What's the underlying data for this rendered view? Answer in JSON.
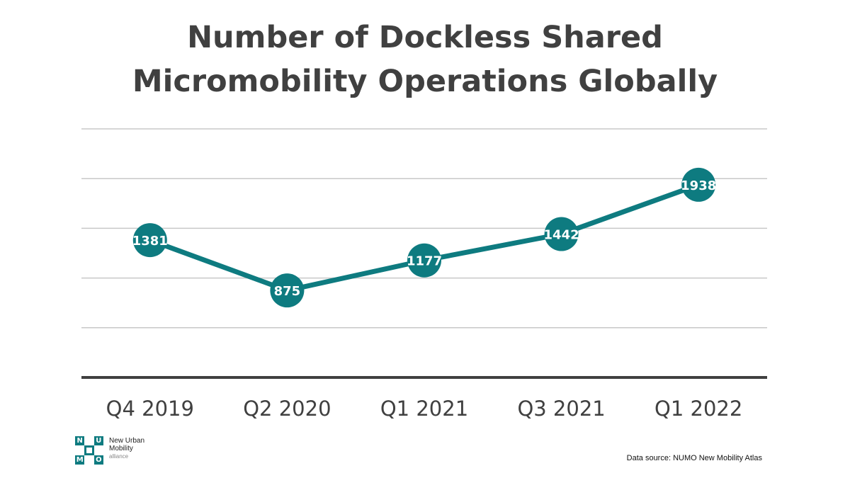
{
  "title": {
    "line1": "Number of Dockless Shared",
    "line2": "Micromobility Operations Globally"
  },
  "chart_data": {
    "type": "line",
    "title": "Number of Dockless Shared Micromobility Operations Globally",
    "categories": [
      "Q4 2019",
      "Q2 2020",
      "Q1 2021",
      "Q3 2021",
      "Q1 2022"
    ],
    "series": [
      {
        "values": [
          1381,
          875,
          1177,
          1442,
          1938
        ]
      }
    ],
    "data_labels": true,
    "ylim": [
      0,
      2500
    ],
    "grid": true,
    "colors": {
      "line": "#0e7b80",
      "marker": "#0e7b80",
      "label": "#ffffff",
      "grid": "#c8c8c8",
      "axis": "#404040"
    }
  },
  "logo": {
    "letters": [
      "N",
      "U",
      "M",
      "O"
    ],
    "line1": "New Urban",
    "line2": "Mobility",
    "line3": "alliance",
    "color": "#0e7b80"
  },
  "source": "Data source: NUMO New Mobility Atlas"
}
